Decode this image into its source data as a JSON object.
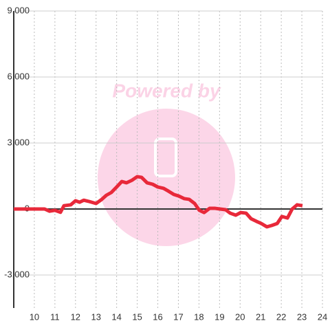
{
  "chart_data": {
    "type": "line",
    "watermark": "Powered by",
    "x": [
      9,
      10.5,
      10.74,
      11.0,
      11.27,
      11.44,
      11.77,
      12.0,
      12.2,
      12.4,
      12.67,
      13.0,
      13.28,
      13.5,
      13.74,
      14.0,
      14.25,
      14.48,
      14.75,
      15.0,
      15.21,
      15.48,
      15.75,
      16.0,
      16.28,
      16.52,
      16.78,
      17.02,
      17.29,
      17.52,
      17.79,
      18.02,
      18.25,
      18.52,
      18.79,
      19.02,
      19.29,
      19.52,
      19.79,
      20.03,
      20.29,
      20.53,
      20.79,
      21.03,
      21.3,
      21.53,
      21.8,
      22.03,
      22.3,
      22.53,
      22.77,
      23.03
    ],
    "series": [
      {
        "color": "#e8293a",
        "values": [
          0,
          0,
          -100,
          -60,
          -150,
          150,
          190,
          375,
          310,
          400,
          340,
          250,
          440,
          625,
          750,
          1000,
          1250,
          1190,
          1310,
          1470,
          1440,
          1190,
          1125,
          1000,
          940,
          810,
          660,
          590,
          470,
          440,
          250,
          -60,
          -160,
          30,
          30,
          0,
          -30,
          -190,
          -280,
          -160,
          -190,
          -440,
          -560,
          -660,
          -810,
          -750,
          -660,
          -340,
          -410,
          0,
          190,
          150
        ]
      }
    ],
    "xlim": [
      9,
      24
    ],
    "xticks": [
      10,
      11,
      12,
      13,
      14,
      15,
      16,
      17,
      18,
      19,
      20,
      21,
      22,
      23,
      24
    ],
    "ylim": [
      -4500,
      9000
    ],
    "yticks": [
      {
        "value": -3000,
        "label": "-3,000"
      },
      0,
      {
        "value": 3000,
        "label": "3,000"
      },
      {
        "value": 6000,
        "label": "6,000"
      },
      {
        "value": 9000,
        "label": "9,000"
      }
    ],
    "grid": true
  }
}
